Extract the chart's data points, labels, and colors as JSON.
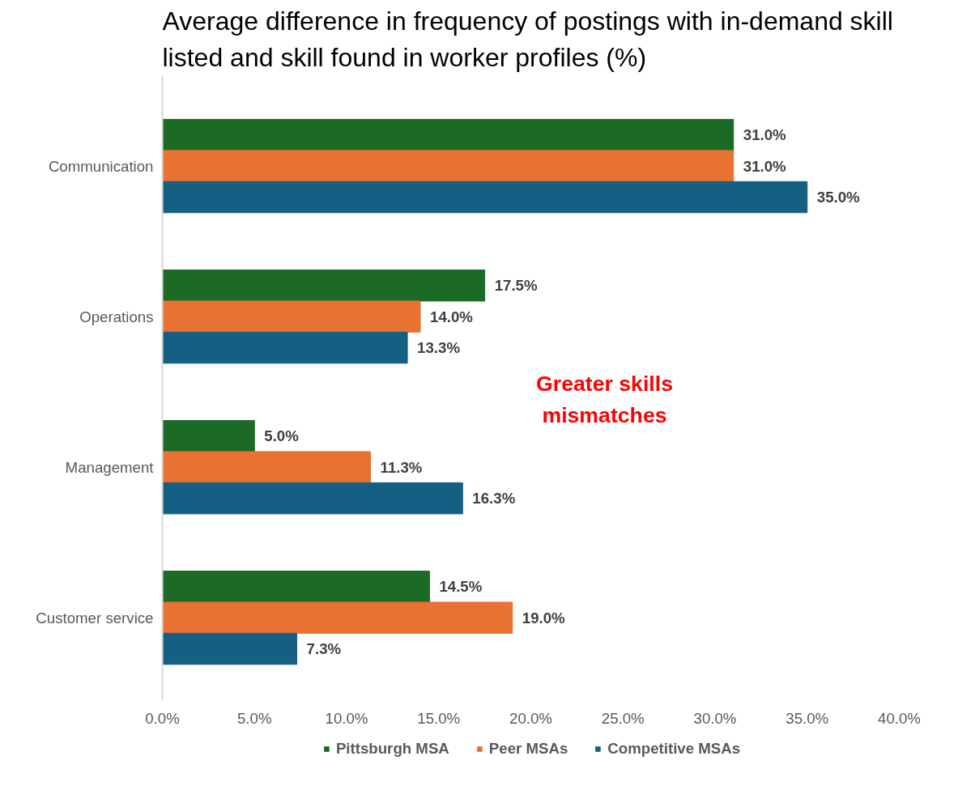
{
  "chart_data": {
    "type": "bar",
    "orientation": "horizontal",
    "title": "Average difference in frequency of postings with in-demand skill listed and skill found in worker profiles (%)",
    "categories": [
      "Communication",
      "Operations",
      "Management",
      "Customer service"
    ],
    "series": [
      {
        "name": "Pittsburgh MSA",
        "color": "#1b6b27",
        "values": [
          31.0,
          17.5,
          5.0,
          14.5
        ],
        "value_labels": [
          "31.0%",
          "17.5%",
          "5.0%",
          "14.5%"
        ]
      },
      {
        "name": "Peer MSAs",
        "color": "#e97132",
        "values": [
          31.0,
          14.0,
          11.3,
          19.0
        ],
        "value_labels": [
          "31.0%",
          "14.0%",
          "11.3%",
          "19.0%"
        ]
      },
      {
        "name": "Competitive MSAs",
        "color": "#156082",
        "values": [
          35.0,
          13.3,
          16.3,
          7.3
        ],
        "value_labels": [
          "35.0%",
          "13.3%",
          "16.3%",
          "7.3%"
        ]
      }
    ],
    "xlim": [
      0,
      40
    ],
    "xticks": [
      {
        "value": 0,
        "label": "0.0%"
      },
      {
        "value": 5,
        "label": "5.0%"
      },
      {
        "value": 10,
        "label": "10.0%"
      },
      {
        "value": 15,
        "label": "15.0%"
      },
      {
        "value": 20,
        "label": "20.0%"
      },
      {
        "value": 25,
        "label": "25.0%"
      },
      {
        "value": 30,
        "label": "30.0%"
      },
      {
        "value": 35,
        "label": "35.0%"
      },
      {
        "value": 40,
        "label": "40.0%"
      }
    ],
    "annotations": [
      "Greater skills mismatches"
    ],
    "grid": false,
    "legend": "bottom"
  }
}
